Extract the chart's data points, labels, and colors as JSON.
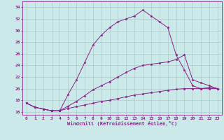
{
  "xlabel": "Windchill (Refroidissement éolien,°C)",
  "bg_color": "#cce9e9",
  "grid_color": "#aacccc",
  "line_color": "#882288",
  "xlim": [
    -0.5,
    23.5
  ],
  "ylim": [
    15.5,
    35.0
  ],
  "yticks": [
    16,
    18,
    20,
    22,
    24,
    26,
    28,
    30,
    32,
    34
  ],
  "xticks": [
    0,
    1,
    2,
    3,
    4,
    5,
    6,
    7,
    8,
    9,
    10,
    11,
    12,
    13,
    14,
    15,
    16,
    17,
    18,
    19,
    20,
    21,
    22,
    23
  ],
  "series": [
    {
      "x": [
        0,
        1,
        2,
        3,
        4,
        5,
        6,
        7,
        8,
        9,
        10,
        11,
        12,
        13,
        14,
        15,
        16,
        17,
        18,
        19,
        20,
        21,
        22,
        23
      ],
      "y": [
        17.5,
        16.8,
        16.5,
        16.2,
        16.2,
        19.0,
        21.5,
        24.5,
        27.5,
        29.2,
        30.5,
        31.5,
        32.0,
        32.5,
        33.5,
        32.5,
        31.5,
        30.5,
        25.8,
        23.2,
        20.5,
        20.0,
        20.2,
        20.0
      ]
    },
    {
      "x": [
        0,
        1,
        2,
        3,
        4,
        5,
        6,
        7,
        8,
        9,
        10,
        11,
        12,
        13,
        14,
        15,
        16,
        17,
        18,
        19,
        20,
        21,
        22,
        23
      ],
      "y": [
        17.5,
        16.8,
        16.5,
        16.2,
        16.2,
        17.0,
        17.8,
        18.8,
        19.8,
        20.5,
        21.2,
        22.0,
        22.8,
        23.5,
        24.0,
        24.2,
        24.4,
        24.6,
        25.0,
        25.8,
        21.5,
        21.0,
        20.5,
        20.0
      ]
    },
    {
      "x": [
        0,
        1,
        2,
        3,
        4,
        5,
        6,
        7,
        8,
        9,
        10,
        11,
        12,
        13,
        14,
        15,
        16,
        17,
        18,
        19,
        20,
        21,
        22,
        23
      ],
      "y": [
        17.5,
        16.8,
        16.5,
        16.2,
        16.2,
        16.6,
        16.9,
        17.2,
        17.5,
        17.8,
        18.0,
        18.3,
        18.6,
        18.9,
        19.1,
        19.3,
        19.5,
        19.7,
        19.9,
        20.0,
        20.0,
        20.0,
        20.0,
        20.0
      ]
    }
  ]
}
